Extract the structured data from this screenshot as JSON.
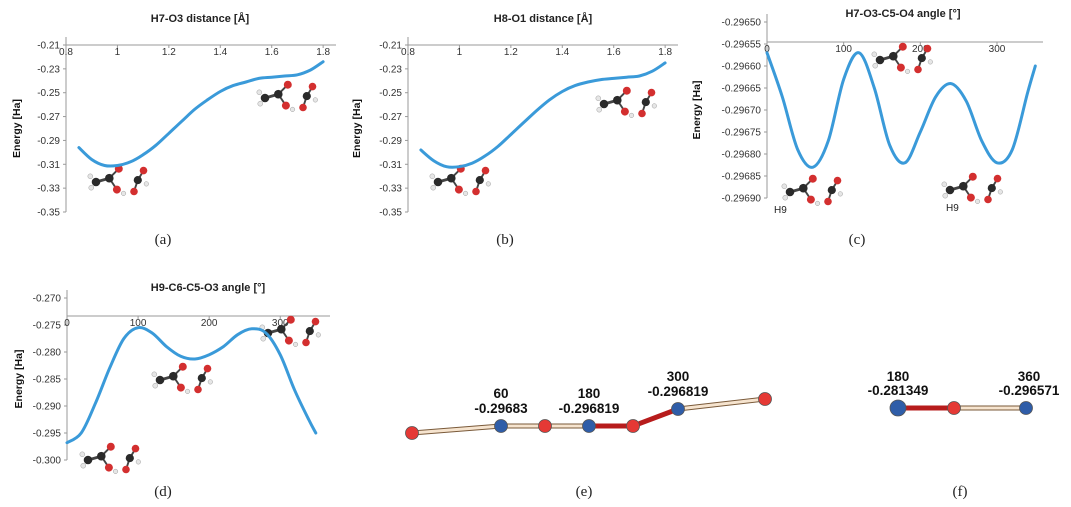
{
  "chart_data": [
    {
      "id": "a",
      "type": "line",
      "caption": "(a)",
      "title": "H7-O3 distance [Å]",
      "ylabel": "Energy [Ha]",
      "xlim": [
        0.8,
        1.85
      ],
      "ylim": [
        -0.35,
        -0.21
      ],
      "xticks": [
        "0.8",
        "1",
        "1.2",
        "1.4",
        "1.6",
        "1.8"
      ],
      "yticks": [
        "-0.21",
        "-0.23",
        "-0.25",
        "-0.27",
        "-0.29",
        "-0.31",
        "-0.33",
        "-0.35"
      ],
      "color": "#3a9ad9",
      "x": [
        0.85,
        0.9,
        0.95,
        1.0,
        1.05,
        1.1,
        1.15,
        1.2,
        1.25,
        1.3,
        1.35,
        1.4,
        1.45,
        1.5,
        1.55,
        1.6,
        1.65,
        1.7,
        1.75,
        1.8
      ],
      "y": [
        -0.296,
        -0.306,
        -0.311,
        -0.311,
        -0.308,
        -0.302,
        -0.294,
        -0.284,
        -0.274,
        -0.264,
        -0.256,
        -0.249,
        -0.244,
        -0.241,
        -0.238,
        -0.237,
        -0.236,
        -0.235,
        -0.231,
        -0.224
      ]
    },
    {
      "id": "b",
      "type": "line",
      "caption": "(b)",
      "title": "H8-O1 distance [Å]",
      "ylabel": "Energy [Ha]",
      "xlim": [
        0.8,
        1.85
      ],
      "ylim": [
        -0.35,
        -0.21
      ],
      "xticks": [
        "0.8",
        "1",
        "1.2",
        "1.4",
        "1.6",
        "1.8"
      ],
      "yticks": [
        "-0.21",
        "-0.23",
        "-0.25",
        "-0.27",
        "-0.29",
        "-0.31",
        "-0.33",
        "-0.35"
      ],
      "color": "#3a9ad9",
      "x": [
        0.85,
        0.9,
        0.95,
        1.0,
        1.05,
        1.1,
        1.15,
        1.2,
        1.25,
        1.3,
        1.35,
        1.4,
        1.45,
        1.5,
        1.55,
        1.6,
        1.65,
        1.7,
        1.75,
        1.8
      ],
      "y": [
        -0.298,
        -0.307,
        -0.312,
        -0.312,
        -0.309,
        -0.303,
        -0.295,
        -0.285,
        -0.275,
        -0.265,
        -0.256,
        -0.249,
        -0.244,
        -0.241,
        -0.239,
        -0.238,
        -0.237,
        -0.236,
        -0.232,
        -0.225
      ]
    },
    {
      "id": "c",
      "type": "line",
      "caption": "(c)",
      "title": "H7-O3-C5-O4 angle [°]",
      "ylabel": "Energy [Ha]",
      "xlim": [
        0,
        360
      ],
      "ylim": [
        -0.2969,
        -0.2965
      ],
      "xticks": [
        "0",
        "100",
        "200",
        "300"
      ],
      "yticks": [
        "-0.29650",
        "-0.29655",
        "-0.29660",
        "-0.29665",
        "-0.29670",
        "-0.29675",
        "-0.29680",
        "-0.29685",
        "-0.29690"
      ],
      "color": "#3a9ad9",
      "x": [
        0,
        20,
        40,
        60,
        80,
        100,
        120,
        140,
        160,
        180,
        200,
        220,
        240,
        260,
        280,
        300,
        320,
        340,
        350
      ],
      "y": [
        -0.29657,
        -0.29667,
        -0.29679,
        -0.29683,
        -0.29677,
        -0.29663,
        -0.29657,
        -0.29665,
        -0.29678,
        -0.29682,
        -0.29675,
        -0.29667,
        -0.29664,
        -0.29668,
        -0.29677,
        -0.29682,
        -0.29679,
        -0.29666,
        -0.2966
      ],
      "annotations": [
        "H9",
        "H9"
      ]
    },
    {
      "id": "d",
      "type": "line",
      "caption": "(d)",
      "title": "H9-C6-C5-O3 angle [°]",
      "ylabel": "Energy [Ha]",
      "xlim": [
        0,
        370
      ],
      "ylim": [
        -0.3,
        -0.27
      ],
      "xticks": [
        "0",
        "100",
        "200",
        "300"
      ],
      "yticks": [
        "-0.270",
        "-0.275",
        "-0.280",
        "-0.285",
        "-0.290",
        "-0.295",
        "-0.300"
      ],
      "color": "#3a9ad9",
      "x": [
        0,
        20,
        40,
        60,
        80,
        100,
        120,
        140,
        160,
        180,
        200,
        220,
        240,
        260,
        280,
        300,
        320,
        340,
        350
      ],
      "y": [
        -0.2968,
        -0.295,
        -0.2895,
        -0.283,
        -0.2775,
        -0.2755,
        -0.2765,
        -0.279,
        -0.2808,
        -0.2813,
        -0.2805,
        -0.279,
        -0.2768,
        -0.2757,
        -0.2765,
        -0.2805,
        -0.287,
        -0.2925,
        -0.295
      ]
    }
  ],
  "networks": [
    {
      "id": "e",
      "caption": "(e)",
      "labels": [
        {
          "value": "60",
          "energy": "-0.29683"
        },
        {
          "value": "180",
          "energy": "-0.296819"
        },
        {
          "value": "300",
          "energy": "-0.296819"
        }
      ]
    },
    {
      "id": "f",
      "caption": "(f)",
      "labels": [
        {
          "value": "180",
          "energy": "-0.281349"
        },
        {
          "value": "360",
          "energy": "-0.296571"
        }
      ]
    }
  ],
  "colors": {
    "curve": "#3a9ad9",
    "node_blue": "#2f5da8",
    "node_red": "#e53935",
    "edge_dark": "#b71c1c",
    "edge_light": "#f6e4cf",
    "atom_carbon": "#2a2a2a",
    "atom_oxygen": "#d32f2f",
    "atom_hydrogen": "#e6e6e6"
  }
}
